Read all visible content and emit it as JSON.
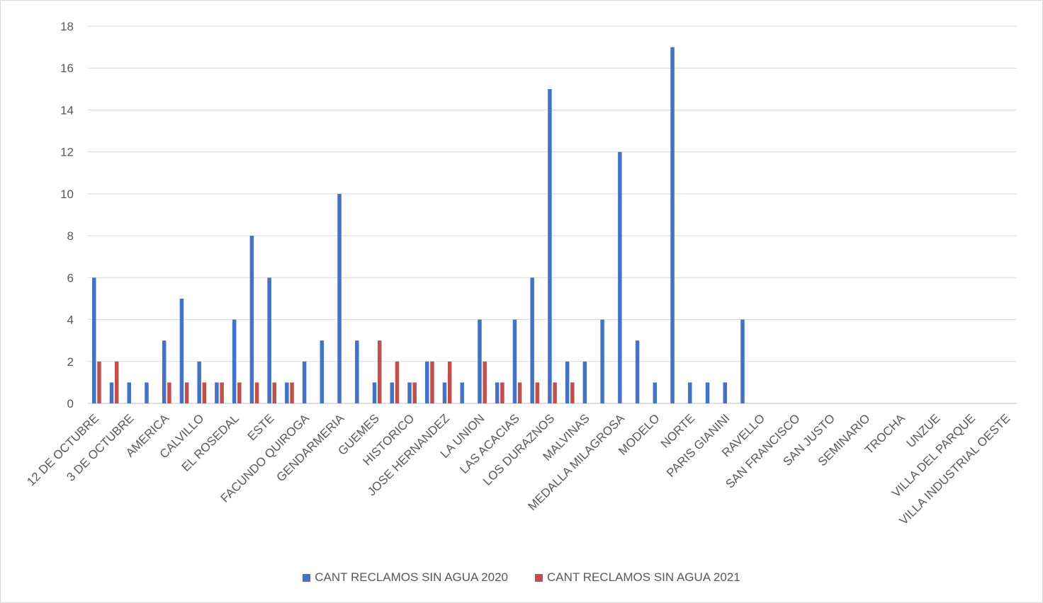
{
  "chart_data": {
    "type": "bar",
    "categories": [
      "12 DE OCTUBRE",
      "3 DE OCTUBRE",
      "AMERICA",
      "CALVILLO",
      "EL ROSEDAL",
      "ESTE",
      "FACUNDO QUIROGA",
      "GENDARMERIA",
      "GUEMES",
      "HISTORICO",
      "JOSE HERNANDEZ",
      "LA UNION",
      "LAS ACACIAS",
      "LOS DURAZNOS",
      "MALVINAS",
      "MEDALLA MILAGROSA",
      "MODELO",
      "NORTE",
      "PARIS GIANINI",
      "RAVELLO",
      "SAN FRANCISCO",
      "SAN JUSTO",
      "SEMINARIO",
      "TROCHA",
      "UNZUE",
      "VILLA DEL PARQUE",
      "VILLA INDUSTRIAL OESTE"
    ],
    "bar_values_2020": [
      6,
      1,
      1,
      1,
      3,
      5,
      2,
      1,
      4,
      8,
      6,
      1,
      2,
      3,
      10,
      3,
      1,
      1,
      1,
      2,
      1,
      1,
      4,
      1,
      4,
      6,
      15,
      2,
      2,
      4,
      12,
      3,
      1,
      17,
      1,
      1,
      1,
      4
    ],
    "series": [
      {
        "name": "CANT RECLAMOS SIN AGUA 2020",
        "color": "#4472c4",
        "points": [
          [
            0,
            6
          ],
          [
            1,
            1
          ],
          [
            2,
            1
          ],
          [
            3,
            1
          ],
          [
            4,
            3
          ],
          [
            5,
            5
          ],
          [
            6,
            2
          ],
          [
            7,
            1
          ],
          [
            8,
            4
          ],
          [
            9,
            8
          ],
          [
            10,
            6
          ],
          [
            11,
            1
          ],
          [
            12,
            2
          ],
          [
            13,
            3
          ],
          [
            14,
            10
          ],
          [
            15,
            3
          ],
          [
            16,
            1
          ],
          [
            17,
            1
          ],
          [
            18,
            1
          ],
          [
            19,
            2
          ],
          [
            20,
            1
          ],
          [
            21,
            1
          ],
          [
            22,
            4
          ],
          [
            23,
            1
          ],
          [
            24,
            4
          ],
          [
            25,
            6
          ],
          [
            26,
            15
          ],
          [
            27,
            2
          ],
          [
            28,
            2
          ],
          [
            29,
            4
          ],
          [
            30,
            12
          ],
          [
            31,
            3
          ],
          [
            32,
            1
          ],
          [
            33,
            17
          ],
          [
            34,
            1
          ],
          [
            35,
            1
          ],
          [
            36,
            1
          ],
          [
            37,
            4
          ]
        ]
      },
      {
        "name": "CANT RECLAMOS SIN AGUA 2021",
        "color": "#c0504d",
        "points": [
          [
            0,
            2
          ],
          [
            1,
            2
          ],
          [
            4,
            1
          ],
          [
            5,
            1
          ],
          [
            6,
            1
          ],
          [
            7,
            1
          ],
          [
            8,
            1
          ],
          [
            9,
            1
          ],
          [
            10,
            1
          ],
          [
            11,
            1
          ],
          [
            16,
            3
          ],
          [
            17,
            2
          ],
          [
            18,
            1
          ],
          [
            19,
            2
          ],
          [
            20,
            2
          ],
          [
            22,
            2
          ],
          [
            23,
            1
          ],
          [
            24,
            1
          ],
          [
            25,
            1
          ],
          [
            26,
            1
          ],
          [
            27,
            1
          ]
        ]
      }
    ],
    "slot_count": 53,
    "label_slots": [
      0,
      2,
      4,
      6,
      8,
      10,
      12,
      14,
      16,
      18,
      20,
      22,
      24,
      26,
      28,
      30,
      32,
      34,
      36,
      38,
      40,
      42,
      44,
      46,
      48,
      50,
      52
    ],
    "ylim": [
      0,
      18
    ],
    "yticks": [
      0,
      2,
      4,
      6,
      8,
      10,
      12,
      14,
      16,
      18
    ],
    "grid": true,
    "legend_position": "bottom"
  },
  "legend": {
    "series_2020": "CANT RECLAMOS SIN AGUA 2020",
    "series_2021": "CANT RECLAMOS SIN AGUA 2021"
  }
}
